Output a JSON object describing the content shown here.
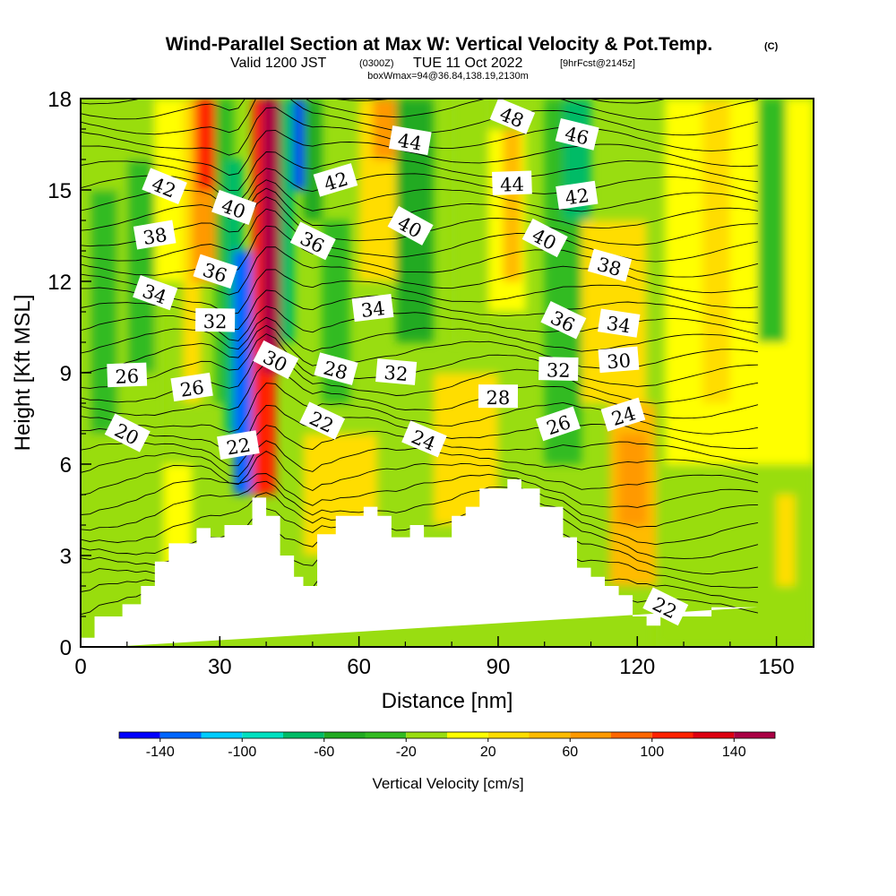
{
  "chart_data": {
    "type": "heatmap",
    "title": {
      "line1": "Wind-Parallel Section at Max W: Vertical Velocity & Pot.Temp.",
      "copyright": "(C)",
      "line2_a": "Valid 1200 JST",
      "line2_b": "(0300Z)",
      "line2_c": "TUE 11 Oct 2022",
      "line2_d": "[9hrFcst@2145z]",
      "line3": "boxWmax=94@36.84,138.19,2130m"
    },
    "xlabel": "Distance [nm]",
    "ylabel": "Height [Kft MSL]",
    "xlim": [
      0,
      158
    ],
    "ylim": [
      0,
      18
    ],
    "xticks": [
      0,
      30,
      60,
      90,
      120,
      150
    ],
    "yticks": [
      0,
      3,
      6,
      9,
      12,
      15,
      18
    ],
    "xtick_labels": [
      "0",
      "30",
      "60",
      "90",
      "120",
      "150"
    ],
    "ytick_labels": [
      "0",
      "3",
      "6",
      "9",
      "12",
      "15",
      "18"
    ],
    "colorbar": {
      "title": "Vertical Velocity [cm/s]",
      "range": [
        -160,
        160
      ],
      "levels": [
        -160,
        -140,
        -120,
        -100,
        -80,
        -60,
        -40,
        -20,
        0,
        20,
        40,
        60,
        80,
        100,
        120,
        140,
        160
      ],
      "colors": [
        "#0000ff",
        "#0066ff",
        "#00ccff",
        "#00e0c0",
        "#00bb66",
        "#22aa22",
        "#33bb22",
        "#99dd11",
        "#ffff00",
        "#ffdd00",
        "#ffbb00",
        "#ff9900",
        "#ff6600",
        "#ff2200",
        "#dd0011",
        "#aa0044",
        "#660088"
      ],
      "tick_values": [
        -140,
        -100,
        -60,
        -20,
        20,
        60,
        100,
        140
      ],
      "tick_labels": [
        "-140",
        "-100",
        "-60",
        "-20",
        "20",
        "60",
        "100",
        "140"
      ]
    },
    "terrain": {
      "distance_nm": [
        0,
        3,
        3,
        9,
        9,
        13,
        13,
        16,
        16,
        19,
        19,
        25,
        25,
        28,
        28,
        31,
        31,
        37,
        37,
        40,
        40,
        43,
        43,
        46,
        46,
        48,
        48,
        51,
        51,
        55,
        55,
        61,
        61,
        64,
        64,
        67,
        67,
        71,
        71,
        74,
        74,
        80,
        80,
        83,
        83,
        86,
        86,
        92,
        92,
        95,
        95,
        99,
        99,
        104,
        104,
        107,
        107,
        110,
        110,
        113,
        113,
        116,
        116,
        119,
        119,
        122,
        122,
        125,
        125,
        136,
        136,
        146,
        146,
        158
      ],
      "height_kft": [
        0.3,
        0.3,
        1.0,
        1.0,
        1.4,
        1.4,
        2.0,
        2.0,
        2.8,
        2.8,
        3.4,
        3.4,
        3.9,
        3.9,
        3.6,
        3.6,
        4.0,
        4.0,
        4.9,
        4.9,
        4.3,
        4.3,
        3.0,
        3.0,
        2.3,
        2.3,
        2.0,
        2.0,
        3.7,
        3.7,
        4.3,
        4.3,
        4.6,
        4.6,
        4.3,
        4.3,
        3.6,
        3.6,
        4.0,
        4.0,
        3.6,
        3.6,
        4.3,
        4.3,
        4.6,
        4.6,
        5.2,
        5.2,
        5.5,
        5.5,
        5.2,
        5.2,
        4.6,
        4.6,
        3.6,
        3.6,
        2.6,
        2.6,
        2.3,
        2.3,
        2.0,
        2.0,
        1.7,
        1.7,
        1.0,
        1.0,
        0.7,
        0.7,
        1.0,
        1.0,
        1.3,
        1.3
      ]
    },
    "w_cells": [
      {
        "x": [
          0,
          18
        ],
        "y": [
          0,
          18
        ],
        "value": -10
      },
      {
        "x": [
          2,
          8
        ],
        "y": [
          7,
          15
        ],
        "value": -30
      },
      {
        "x": [
          10,
          16
        ],
        "y": [
          9,
          16
        ],
        "value": -40
      },
      {
        "x": [
          16,
          22
        ],
        "y": [
          12,
          18
        ],
        "value": 10
      },
      {
        "x": [
          18,
          24
        ],
        "y": [
          2,
          6
        ],
        "value": 5
      },
      {
        "x": [
          22,
          26
        ],
        "y": [
          8,
          18
        ],
        "value": 30
      },
      {
        "x": [
          24,
          30
        ],
        "y": [
          12,
          18
        ],
        "value": 70
      },
      {
        "x": [
          25,
          29
        ],
        "y": [
          15,
          18
        ],
        "value": 110
      },
      {
        "x": [
          29,
          33
        ],
        "y": [
          8,
          18
        ],
        "value": -40
      },
      {
        "x": [
          31,
          35
        ],
        "y": [
          7,
          16
        ],
        "value": -80
      },
      {
        "x": [
          33,
          37
        ],
        "y": [
          5,
          13
        ],
        "value": -130
      },
      {
        "x": [
          37,
          42
        ],
        "y": [
          5,
          18
        ],
        "value": 110
      },
      {
        "x": [
          39,
          43
        ],
        "y": [
          9,
          18
        ],
        "value": 150
      },
      {
        "x": [
          43,
          46
        ],
        "y": [
          10,
          18
        ],
        "value": -70
      },
      {
        "x": [
          46,
          48
        ],
        "y": [
          15,
          18
        ],
        "value": -150
      },
      {
        "x": [
          48,
          52
        ],
        "y": [
          14,
          18
        ],
        "value": -50
      },
      {
        "x": [
          48,
          64
        ],
        "y": [
          3,
          7
        ],
        "value": 25
      },
      {
        "x": [
          52,
          58
        ],
        "y": [
          8,
          14
        ],
        "value": -30
      },
      {
        "x": [
          60,
          68
        ],
        "y": [
          12,
          18
        ],
        "value": 20
      },
      {
        "x": [
          63,
          68
        ],
        "y": [
          16,
          18
        ],
        "value": 70
      },
      {
        "x": [
          68,
          76
        ],
        "y": [
          10,
          18
        ],
        "value": -60
      },
      {
        "x": [
          76,
          90
        ],
        "y": [
          4,
          9
        ],
        "value": 25
      },
      {
        "x": [
          80,
          88
        ],
        "y": [
          10,
          18
        ],
        "value": -20
      },
      {
        "x": [
          88,
          96
        ],
        "y": [
          11,
          17
        ],
        "value": 15
      },
      {
        "x": [
          91,
          95
        ],
        "y": [
          12,
          17
        ],
        "value": 50
      },
      {
        "x": [
          100,
          108
        ],
        "y": [
          6,
          18
        ],
        "value": -30
      },
      {
        "x": [
          104,
          110
        ],
        "y": [
          14,
          18
        ],
        "value": -70
      },
      {
        "x": [
          108,
          122
        ],
        "y": [
          8,
          14
        ],
        "value": 25
      },
      {
        "x": [
          114,
          124
        ],
        "y": [
          2,
          8
        ],
        "value": 40
      },
      {
        "x": [
          116,
          122
        ],
        "y": [
          4,
          7
        ],
        "value": 60
      },
      {
        "x": [
          124,
          158
        ],
        "y": [
          0,
          6
        ],
        "value": -5
      },
      {
        "x": [
          126,
          158
        ],
        "y": [
          6,
          18
        ],
        "value": 10
      },
      {
        "x": [
          134,
          140
        ],
        "y": [
          8,
          18
        ],
        "value": 30
      },
      {
        "x": [
          146,
          152
        ],
        "y": [
          10,
          18
        ],
        "value": -25
      },
      {
        "x": [
          150,
          154
        ],
        "y": [
          2,
          5
        ],
        "value": 25
      }
    ],
    "theta_contour_labels": [
      {
        "text": "20",
        "x": 10,
        "y": 7.0
      },
      {
        "text": "26",
        "x": 10,
        "y": 8.9
      },
      {
        "text": "26",
        "x": 24,
        "y": 8.5
      },
      {
        "text": "22",
        "x": 34,
        "y": 6.6
      },
      {
        "text": "34",
        "x": 16,
        "y": 11.6
      },
      {
        "text": "32",
        "x": 29,
        "y": 10.7
      },
      {
        "text": "38",
        "x": 16,
        "y": 13.5
      },
      {
        "text": "36",
        "x": 29,
        "y": 12.3
      },
      {
        "text": "42",
        "x": 18,
        "y": 15.1
      },
      {
        "text": "40",
        "x": 33,
        "y": 14.4
      },
      {
        "text": "30",
        "x": 42,
        "y": 9.4
      },
      {
        "text": "36",
        "x": 50,
        "y": 13.3
      },
      {
        "text": "42",
        "x": 55,
        "y": 15.3
      },
      {
        "text": "22",
        "x": 52,
        "y": 7.4
      },
      {
        "text": "28",
        "x": 55,
        "y": 9.1
      },
      {
        "text": "34",
        "x": 63,
        "y": 11.1
      },
      {
        "text": "32",
        "x": 68,
        "y": 9.0
      },
      {
        "text": "40",
        "x": 71,
        "y": 13.8
      },
      {
        "text": "44",
        "x": 71,
        "y": 16.6
      },
      {
        "text": "24",
        "x": 74,
        "y": 6.8
      },
      {
        "text": "28",
        "x": 90,
        "y": 8.2
      },
      {
        "text": "48",
        "x": 93,
        "y": 17.4
      },
      {
        "text": "44",
        "x": 93,
        "y": 15.2
      },
      {
        "text": "40",
        "x": 100,
        "y": 13.4
      },
      {
        "text": "36",
        "x": 104,
        "y": 10.7
      },
      {
        "text": "32",
        "x": 103,
        "y": 9.1
      },
      {
        "text": "26",
        "x": 103,
        "y": 7.3
      },
      {
        "text": "46",
        "x": 107,
        "y": 16.8
      },
      {
        "text": "42",
        "x": 107,
        "y": 14.8
      },
      {
        "text": "38",
        "x": 114,
        "y": 12.5
      },
      {
        "text": "34",
        "x": 116,
        "y": 10.6
      },
      {
        "text": "30",
        "x": 116,
        "y": 9.4
      },
      {
        "text": "24",
        "x": 117,
        "y": 7.6
      },
      {
        "text": "22",
        "x": 126,
        "y": 1.3
      }
    ]
  }
}
